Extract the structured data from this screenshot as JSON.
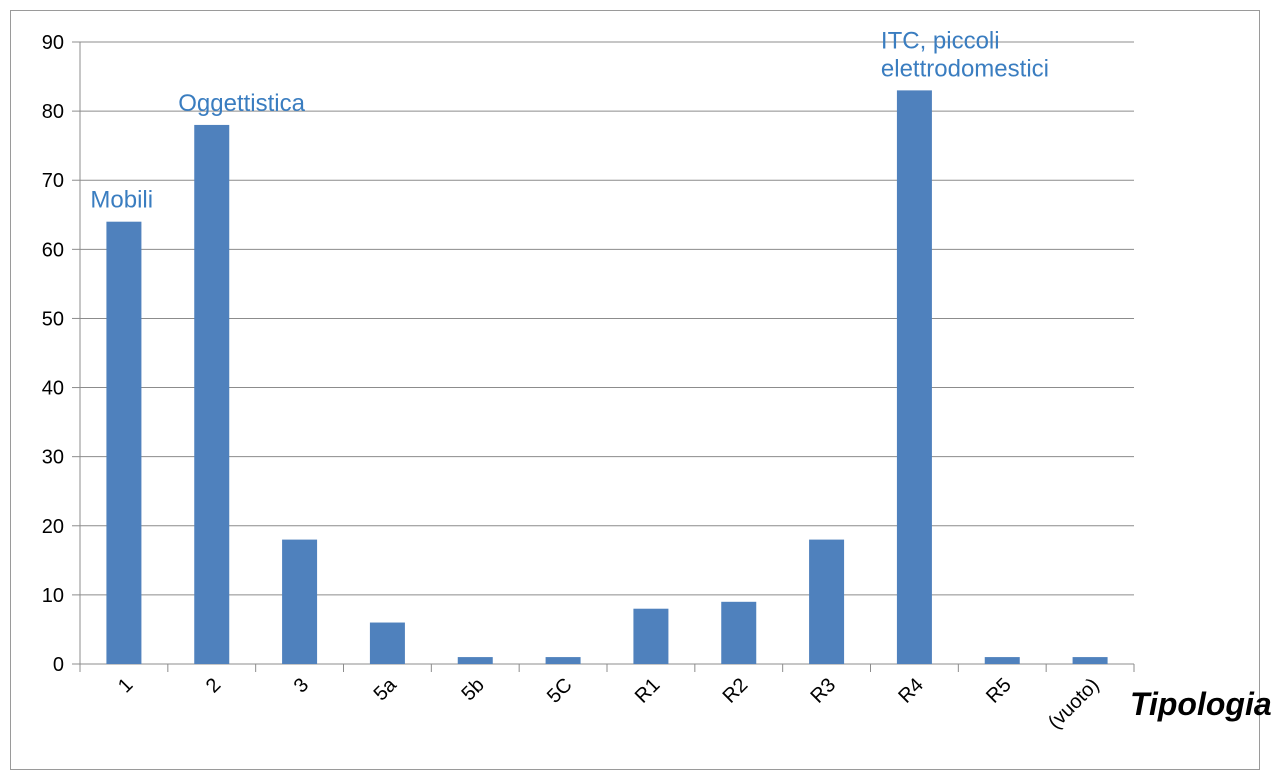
{
  "chart_data": {
    "type": "bar",
    "categories": [
      "1",
      "2",
      "3",
      "5a",
      "5b",
      "5C",
      "R1",
      "R2",
      "R3",
      "R4",
      "R5",
      "(vuoto)"
    ],
    "values": [
      64,
      78,
      18,
      6,
      1,
      1,
      8,
      9,
      18,
      83,
      1,
      1
    ],
    "title": "",
    "xlabel": "Tipologia",
    "ylabel": "",
    "ylim": [
      0,
      90
    ],
    "yticks": [
      0,
      10,
      20,
      30,
      40,
      50,
      60,
      70,
      80,
      90
    ],
    "grid": true,
    "bar_color": "#4f81bd",
    "annotation_color": "#3a7dc0",
    "annotations": [
      {
        "category": "1",
        "lines": [
          "Mobili"
        ]
      },
      {
        "category": "2",
        "lines": [
          "Oggettistica"
        ]
      },
      {
        "category": "R4",
        "lines": [
          "ITC, piccoli",
          "elettrodomestici"
        ]
      }
    ]
  }
}
